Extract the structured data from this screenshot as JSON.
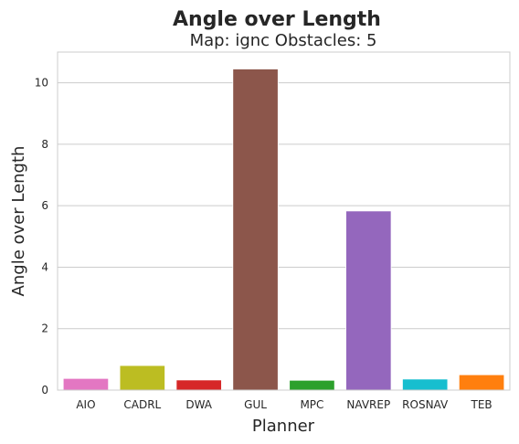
{
  "chart_data": {
    "type": "bar",
    "title": "Angle over Length",
    "subtitle": "Map: ignc Obstacles: 5",
    "xlabel": "Planner",
    "ylabel": "Angle over Length",
    "categories": [
      "AIO",
      "CADRL",
      "DWA",
      "GUL",
      "MPC",
      "NAVREP",
      "ROSNAV",
      "TEB"
    ],
    "values": [
      0.38,
      0.8,
      0.33,
      10.45,
      0.32,
      5.83,
      0.36,
      0.5
    ],
    "colors": [
      "#e377c2",
      "#bcbd22",
      "#d62728",
      "#8c564b",
      "#2ca02c",
      "#9467bd",
      "#17becf",
      "#ff7f0e"
    ],
    "ylim": [
      0,
      11
    ],
    "yticks": [
      0,
      2,
      4,
      6,
      8,
      10
    ],
    "grid": true,
    "legend": "none"
  }
}
